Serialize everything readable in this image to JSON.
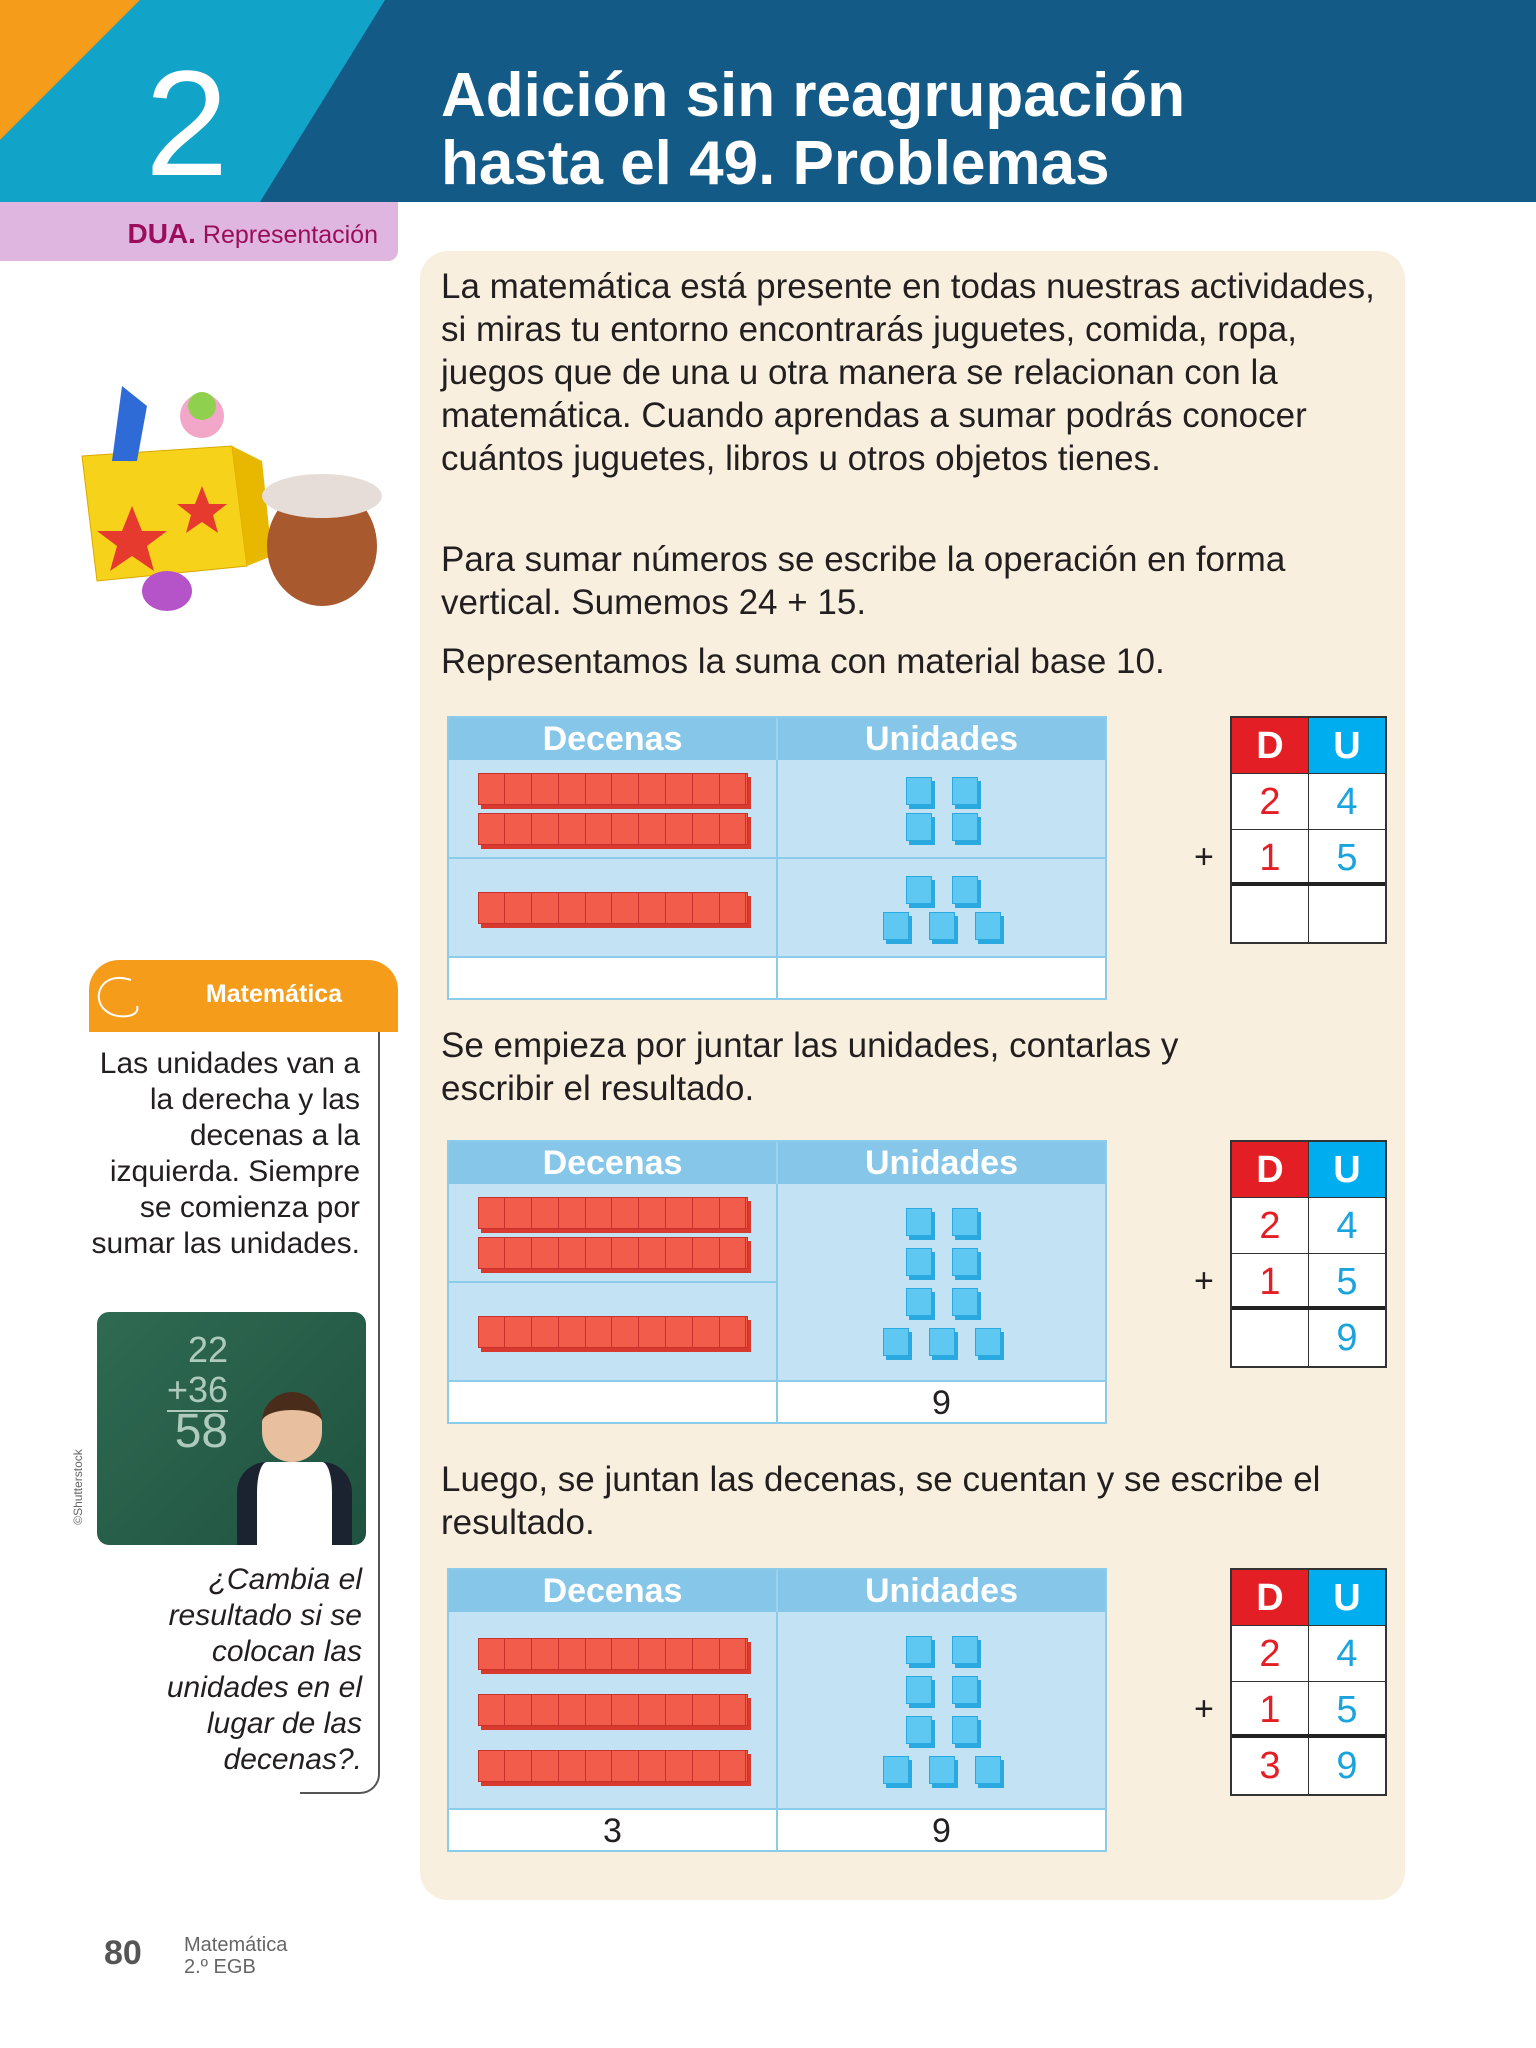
{
  "header": {
    "unit_number": "2",
    "title_line1": "Adición sin reagrupación",
    "title_line2": "hasta el 49. Problemas"
  },
  "dua": {
    "bold": "DUA.",
    "text": " Representación"
  },
  "intro": {
    "p1": "La matemática está presente en todas nuestras actividades, si miras tu entorno encontrarás juguetes, comida, ropa, juegos que de una u otra manera se relacionan con la matemática. Cuando aprendas a sumar podrás conocer cuántos juguetes, libros u otros objetos tienes.",
    "p2": "Para sumar números se escribe la operación en forma vertical. Sumemos 24 + 15.",
    "p3": "Representamos la suma con material base 10."
  },
  "step2_text": "Se empieza por juntar las unidades, contarlas y escribir el resultado.",
  "step3_text": "Luego, se juntan las decenas, se cuentan y se escribe el resultado.",
  "table_headers": {
    "tens": "Decenas",
    "units": "Unidades"
  },
  "du_headers": {
    "d": "D",
    "u": "U"
  },
  "plus": "+",
  "tables": [
    {
      "rows": [
        {
          "tens": 2,
          "units": 4
        },
        {
          "tens": 1,
          "units": 5
        }
      ],
      "merge_units": false,
      "merge_tens": false,
      "answer_tens": "",
      "answer_units": "",
      "du": {
        "a": [
          "2",
          "4"
        ],
        "b": [
          "1",
          "5"
        ],
        "result": [
          "",
          ""
        ]
      }
    },
    {
      "rows": [
        {
          "tens": 2,
          "units": 9
        },
        {
          "tens": 1,
          "units": 0
        }
      ],
      "merge_units": true,
      "merge_tens": false,
      "answer_tens": "",
      "answer_units": "9",
      "du": {
        "a": [
          "2",
          "4"
        ],
        "b": [
          "1",
          "5"
        ],
        "result": [
          "",
          "9"
        ]
      }
    },
    {
      "rows": [
        {
          "tens": 3,
          "units": 9
        }
      ],
      "merge_units": true,
      "merge_tens": true,
      "answer_tens": "3",
      "answer_units": "9",
      "du": {
        "a": [
          "2",
          "4"
        ],
        "b": [
          "1",
          "5"
        ],
        "result": [
          "3",
          "9"
        ]
      }
    }
  ],
  "note": {
    "tab": "Matemática",
    "text": "Las unidades van a la derecha y las decenas a la izquierda. Siempre se comienza por sumar las unidades.",
    "question": "¿Cambia el resultado si se colocan las unidades en el lugar de las decenas?.",
    "credit": "©Shutterstock",
    "chalk": [
      "22",
      "+36",
      "58"
    ]
  },
  "footer": {
    "page": "80",
    "subject": "Matemática",
    "grade": "2.º EGB"
  }
}
